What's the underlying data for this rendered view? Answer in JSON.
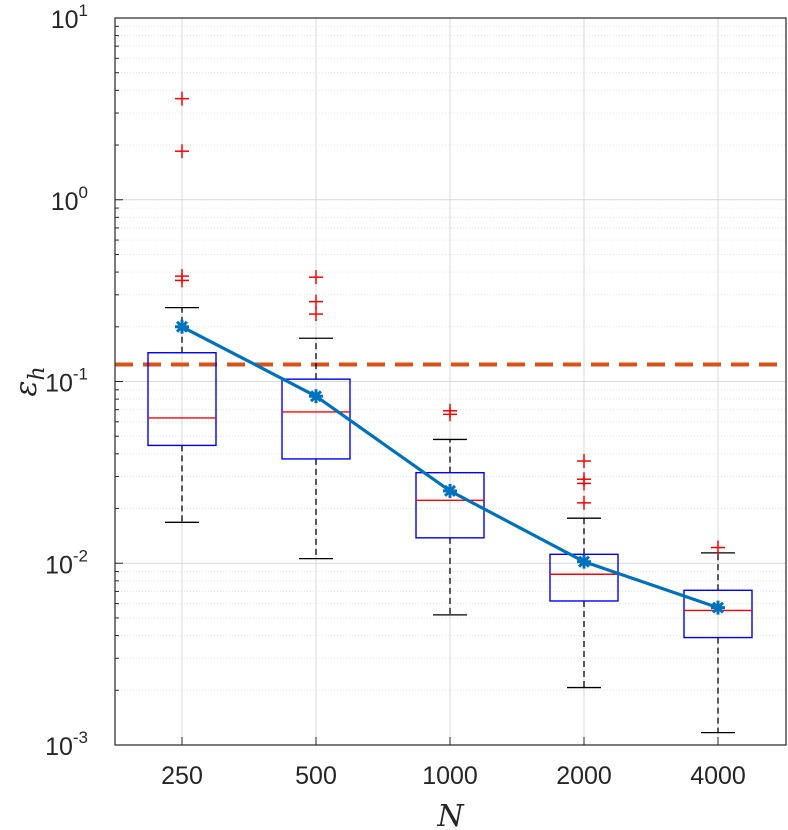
{
  "chart_data": {
    "type": "box",
    "xlabel": "N",
    "ylabel": "ε",
    "ylabel_sub": "h",
    "categories": [
      "250",
      "500",
      "1000",
      "2000",
      "4000"
    ],
    "yscale": "log",
    "ylim": [
      0.001,
      10
    ],
    "yticks": [
      {
        "base": "10",
        "exp": "-3"
      },
      {
        "base": "10",
        "exp": "-2"
      },
      {
        "base": "10",
        "exp": "-1"
      },
      {
        "base": "10",
        "exp": "0"
      },
      {
        "base": "10",
        "exp": "1"
      }
    ],
    "grid": true,
    "boxes": [
      {
        "category": "250",
        "whisker_low": 0.0168,
        "q1": 0.0445,
        "median": 0.063,
        "q3": 0.144,
        "whisker_high": 0.255,
        "outliers": [
          3.6,
          1.85,
          0.38,
          0.36
        ]
      },
      {
        "category": "500",
        "whisker_low": 0.0106,
        "q1": 0.0375,
        "median": 0.068,
        "q3": 0.103,
        "whisker_high": 0.173,
        "outliers": [
          0.375,
          0.275,
          0.235
        ]
      },
      {
        "category": "1000",
        "whisker_low": 0.0052,
        "q1": 0.0138,
        "median": 0.0222,
        "q3": 0.0315,
        "whisker_high": 0.048,
        "outliers": [
          0.069,
          0.066
        ]
      },
      {
        "category": "2000",
        "whisker_low": 0.00207,
        "q1": 0.0062,
        "median": 0.0087,
        "q3": 0.0112,
        "whisker_high": 0.0177,
        "outliers": [
          0.0365,
          0.029,
          0.0275,
          0.0215
        ]
      },
      {
        "category": "4000",
        "whisker_low": 0.00117,
        "q1": 0.0039,
        "median": 0.0055,
        "q3": 0.0071,
        "whisker_high": 0.0114,
        "outliers": [
          0.0122
        ]
      }
    ],
    "mean_series": {
      "values": [
        0.2,
        0.083,
        0.025,
        0.0102,
        0.0057
      ]
    },
    "reference_line": {
      "y": 0.124
    },
    "colors": {
      "box": "#0000ff",
      "median": "#ff0000",
      "whisker": "#000000",
      "outlier": "#ff0000",
      "mean_line": "#0072bd",
      "reference": "#d95319",
      "grid": "#d9d9d9"
    }
  }
}
